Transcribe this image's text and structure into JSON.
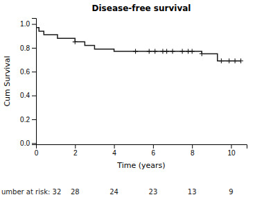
{
  "chart_data": {
    "type": "step",
    "title": "Disease-free survival",
    "xlabel": "Time (years)",
    "ylabel": "Cum Survival",
    "xlim": [
      0,
      10.8
    ],
    "ylim": [
      -0.01,
      1.05
    ],
    "xticks": [
      0,
      2,
      4,
      6,
      8,
      10
    ],
    "yticks": [
      {
        "value": 0.0,
        "label": "0.0"
      },
      0.2,
      0.4,
      0.6,
      0.8,
      {
        "value": 1.0,
        "label": "1.0"
      }
    ],
    "grid": false,
    "series": [
      {
        "type": "step",
        "color": "#1a1a1a",
        "x": [
          0,
          0.15,
          0.4,
          0.7,
          1.1,
          1.5,
          2.0,
          2.3,
          2.5,
          2.8,
          3.0,
          3.3,
          3.7,
          4.0,
          4.5,
          5.0,
          5.5,
          5.8,
          6.0,
          6.3,
          6.5,
          6.7,
          7.0,
          7.2,
          7.5,
          7.8,
          8.0,
          8.5,
          9.0,
          9.3,
          9.8,
          10.1,
          10.5
        ],
        "values": [
          0.97,
          0.94,
          0.91,
          0.91,
          0.88,
          0.88,
          0.85,
          0.85,
          0.82,
          0.82,
          0.79,
          0.79,
          0.79,
          0.77,
          0.77,
          0.77,
          0.77,
          0.77,
          0.77,
          0.77,
          0.77,
          0.77,
          0.77,
          0.77,
          0.77,
          0.77,
          0.77,
          0.75,
          0.75,
          0.69,
          0.69,
          0.69,
          0.69
        ]
      },
      {
        "type": "scatter",
        "marker": "plus",
        "color": "#1a1a1a",
        "x": [
          2.0,
          5.1,
          5.8,
          6.1,
          6.5,
          6.7,
          7.0,
          7.5,
          7.8,
          8.0,
          8.5,
          9.5,
          9.9,
          10.2,
          10.5
        ],
        "values": [
          0.85,
          0.77,
          0.77,
          0.77,
          0.77,
          0.77,
          0.77,
          0.77,
          0.77,
          0.77,
          0.75,
          0.69,
          0.69,
          0.69,
          0.69
        ]
      }
    ],
    "annotations": [
      {
        "text": "umber at risk: 32"
      },
      {
        "text": "28",
        "x": 2
      },
      {
        "text": "24",
        "x": 4
      },
      {
        "text": "23",
        "x": 6
      },
      {
        "text": "13",
        "x": 8
      },
      {
        "text": "9",
        "x": 10
      }
    ]
  }
}
